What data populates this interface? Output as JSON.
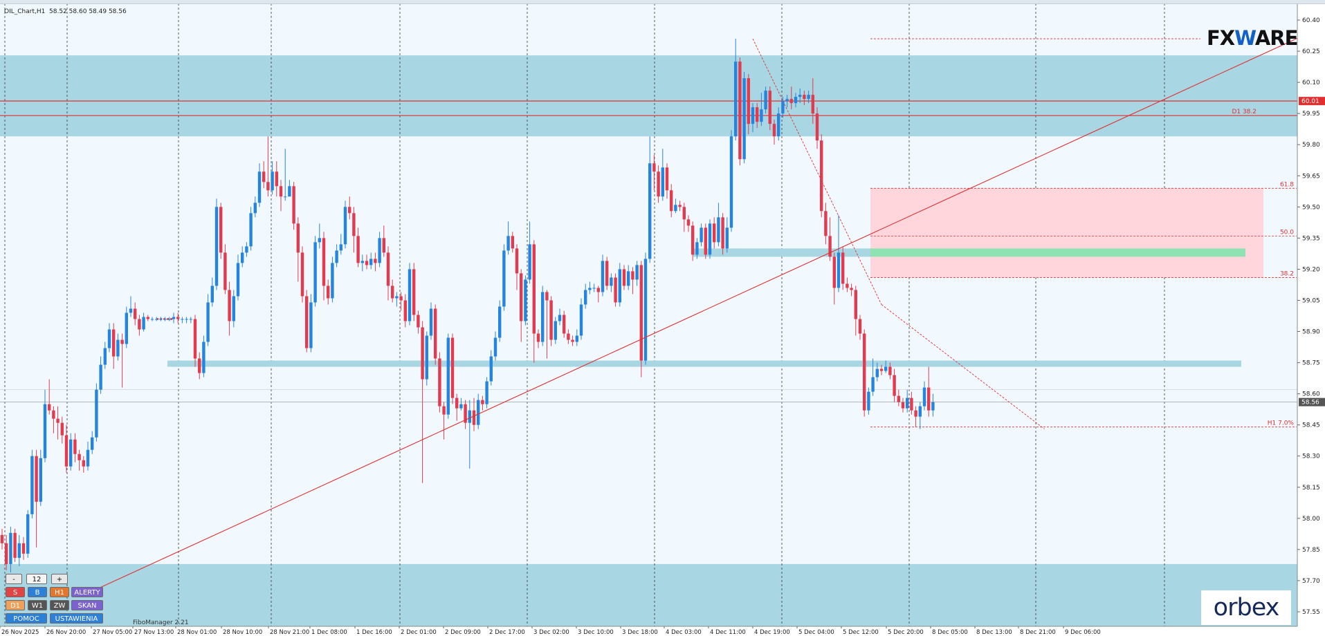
{
  "header": {
    "title": "OIL_Chart,H1  58.52 58.60 58.49 58.56"
  },
  "indicator_label": "FiboManager 2.21",
  "logo": {
    "left": "FX",
    "mid": "W",
    "right": "ARE"
  },
  "logo_bottom": "orbex",
  "panel": {
    "minus": "-",
    "value": "12",
    "plus": "+",
    "s": "S",
    "b": "B",
    "h1": "H1",
    "alerty": "ALERTY",
    "d1": "D1",
    "w1": "W1",
    "zw": "ZW",
    "skan": "SKAN",
    "pomoc": "POMOC",
    "ustawienia": "USTAWIENIA"
  },
  "chart_data": {
    "type": "candlestick",
    "title": "OIL_Chart,H1",
    "last_ohlc": {
      "open": 58.52,
      "high": 58.6,
      "low": 58.49,
      "close": 58.56
    },
    "ylim": [
      57.48,
      60.48
    ],
    "y_ticks": [
      "60.40",
      "60.25",
      "60.10",
      "59.95",
      "59.80",
      "59.65",
      "59.50",
      "59.35",
      "59.20",
      "59.05",
      "58.90",
      "58.75",
      "58.60",
      "58.45",
      "58.30",
      "58.15",
      "58.00",
      "57.85",
      "57.70",
      "57.55"
    ],
    "x_ticks": [
      "26 Nov 2025",
      "26 Nov 20:00",
      "27 Nov 05:00",
      "27 Nov 13:00",
      "28 Nov 01:00",
      "28 Nov 10:00",
      "28 Nov 21:00",
      "1 Dec 08:00",
      "1 Dec 16:00",
      "2 Dec 01:00",
      "2 Dec 09:00",
      "2 Dec 17:00",
      "3 Dec 02:00",
      "3 Dec 10:00",
      "3 Dec 18:00",
      "4 Dec 03:00",
      "4 Dec 11:00",
      "4 Dec 19:00",
      "5 Dec 04:00",
      "5 Dec 12:00",
      "5 Dec 20:00",
      "8 Dec 05:00",
      "8 Dec 13:00",
      "8 Dec 21:00",
      "9 Dec 06:00"
    ],
    "price_tags": [
      {
        "value": 60.01,
        "label": "60.01",
        "color": "#e03030"
      },
      {
        "value": 58.56,
        "label": "58.56",
        "color": "#555555"
      }
    ],
    "zones": [
      {
        "from": 59.84,
        "to": 60.23,
        "color": "#a9d6e3"
      },
      {
        "from": 57.48,
        "to": 57.78,
        "color": "#a9d6e3"
      }
    ],
    "bands": [
      {
        "x0": 242,
        "x1": 1794,
        "from": 58.73,
        "to": 58.76,
        "color": "#a9d6e3"
      },
      {
        "x0": 1002,
        "x1": 1258,
        "from": 59.26,
        "to": 59.3,
        "color": "#a9d6e3"
      },
      {
        "x0": 1258,
        "x1": 1800,
        "from": 59.26,
        "to": 59.3,
        "color": "#8fe3b3"
      }
    ],
    "fib_box": {
      "from": 59.16,
      "to": 59.59,
      "color": "#ffd6dc"
    },
    "horizontal_lines": [
      {
        "value": 60.01,
        "color": "#e03030"
      },
      {
        "value": 59.94,
        "color": "#e03030",
        "label": "D1 38.2"
      }
    ],
    "fib_levels": [
      {
        "value": 59.59,
        "label": "61.8"
      },
      {
        "value": 59.36,
        "label": "50.0"
      },
      {
        "value": 59.16,
        "label": "38.2"
      },
      {
        "value": 58.44,
        "label": "H1 7.0%"
      }
    ],
    "trendline": {
      "from": {
        "index": 0,
        "value": 57.45
      },
      "to": {
        "index": 250,
        "value": 59.82
      }
    },
    "candles": [
      [
        57.92,
        57.88,
        57.95,
        57.85
      ],
      [
        57.88,
        57.78,
        57.92,
        57.75
      ],
      [
        57.78,
        57.93,
        57.96,
        57.74
      ],
      [
        57.93,
        57.81,
        57.95,
        57.79
      ],
      [
        57.81,
        57.88,
        57.92,
        57.77
      ],
      [
        57.88,
        57.83,
        57.91,
        57.8
      ],
      [
        57.83,
        58.02,
        58.04,
        57.81
      ],
      [
        58.02,
        58.3,
        58.33,
        58.0
      ],
      [
        58.3,
        58.08,
        58.33,
        57.86
      ],
      [
        58.08,
        58.29,
        58.33,
        58.06
      ],
      [
        58.29,
        58.55,
        58.62,
        58.27
      ],
      [
        58.55,
        58.52,
        58.67,
        58.5
      ],
      [
        58.52,
        58.48,
        58.54,
        58.41
      ],
      [
        58.48,
        58.46,
        58.54,
        58.38
      ],
      [
        58.46,
        58.4,
        58.49,
        58.36
      ],
      [
        58.4,
        58.25,
        58.45,
        58.22
      ],
      [
        58.25,
        58.38,
        58.41,
        58.23
      ],
      [
        58.38,
        58.31,
        58.41,
        58.27
      ],
      [
        58.31,
        58.28,
        58.33,
        58.23
      ],
      [
        58.28,
        58.25,
        58.3,
        58.22
      ],
      [
        58.25,
        58.33,
        58.37,
        58.23
      ],
      [
        58.33,
        58.39,
        58.42,
        58.31
      ],
      [
        58.39,
        58.62,
        58.65,
        58.37
      ],
      [
        58.62,
        58.74,
        58.78,
        58.6
      ],
      [
        58.74,
        58.82,
        58.85,
        58.72
      ],
      [
        58.82,
        58.91,
        58.94,
        58.8
      ],
      [
        58.91,
        58.78,
        58.94,
        58.72
      ],
      [
        58.78,
        58.86,
        58.89,
        58.76
      ],
      [
        58.86,
        58.84,
        58.89,
        58.63
      ],
      [
        58.84,
        58.99,
        59.02,
        58.82
      ],
      [
        58.99,
        59.01,
        59.07,
        58.97
      ],
      [
        59.01,
        58.96,
        59.04,
        58.93
      ],
      [
        58.96,
        58.91,
        58.98,
        58.88
      ],
      [
        58.91,
        58.97,
        58.99,
        58.9
      ],
      [
        58.97,
        58.96,
        58.98,
        58.95
      ],
      [
        58.96,
        58.96,
        58.97,
        58.95
      ],
      [
        58.96,
        58.96,
        58.97,
        58.95
      ],
      [
        58.96,
        58.96,
        58.97,
        58.95
      ],
      [
        58.96,
        58.96,
        58.97,
        58.95
      ],
      [
        58.96,
        58.96,
        58.97,
        58.95
      ],
      [
        58.96,
        58.97,
        58.99,
        58.94
      ],
      [
        58.97,
        58.96,
        58.99,
        58.94
      ],
      [
        58.96,
        58.96,
        58.97,
        58.94
      ],
      [
        58.96,
        58.96,
        58.97,
        58.94
      ],
      [
        58.96,
        58.96,
        58.97,
        58.94
      ],
      [
        58.96,
        58.77,
        58.98,
        58.73
      ],
      [
        58.77,
        58.7,
        58.8,
        58.67
      ],
      [
        58.7,
        58.85,
        58.88,
        58.68
      ],
      [
        58.85,
        59.04,
        59.08,
        58.83
      ],
      [
        59.04,
        59.12,
        59.16,
        59.02
      ],
      [
        59.12,
        59.5,
        59.54,
        59.1
      ],
      [
        59.5,
        59.28,
        59.52,
        59.25
      ],
      [
        59.28,
        59.1,
        59.32,
        59.08
      ],
      [
        59.1,
        58.95,
        59.14,
        58.88
      ],
      [
        58.95,
        59.07,
        59.1,
        58.92
      ],
      [
        59.07,
        59.23,
        59.27,
        59.05
      ],
      [
        59.23,
        59.28,
        59.31,
        59.21
      ],
      [
        59.28,
        59.31,
        59.33,
        59.26
      ],
      [
        59.31,
        59.47,
        59.5,
        59.29
      ],
      [
        59.47,
        59.52,
        59.55,
        59.45
      ],
      [
        59.52,
        59.67,
        59.71,
        59.5
      ],
      [
        59.67,
        59.62,
        59.72,
        59.59
      ],
      [
        59.62,
        59.58,
        59.84,
        59.55
      ],
      [
        59.58,
        59.67,
        59.72,
        59.56
      ],
      [
        59.67,
        59.6,
        59.72,
        59.55
      ],
      [
        59.6,
        59.55,
        59.63,
        59.48
      ],
      [
        59.55,
        59.55,
        59.78,
        59.53
      ],
      [
        59.55,
        59.6,
        59.63,
        59.57
      ],
      [
        59.6,
        59.42,
        59.62,
        59.39
      ],
      [
        59.42,
        59.28,
        59.45,
        59.14
      ],
      [
        59.28,
        59.07,
        59.31,
        59.04
      ],
      [
        59.07,
        58.82,
        59.1,
        58.8
      ],
      [
        58.82,
        59.04,
        59.08,
        58.8
      ],
      [
        59.04,
        59.33,
        59.36,
        59.02
      ],
      [
        59.33,
        59.35,
        59.42,
        59.3
      ],
      [
        59.35,
        59.12,
        59.38,
        59.05
      ],
      [
        59.12,
        59.06,
        59.15,
        59.03
      ],
      [
        59.06,
        59.23,
        59.26,
        59.04
      ],
      [
        59.23,
        59.29,
        59.32,
        59.21
      ],
      [
        59.29,
        59.32,
        59.37,
        59.27
      ],
      [
        59.32,
        59.5,
        59.53,
        59.3
      ],
      [
        59.5,
        59.47,
        59.55,
        59.44
      ],
      [
        59.47,
        59.36,
        59.5,
        59.28
      ],
      [
        59.36,
        59.23,
        59.4,
        59.21
      ],
      [
        59.23,
        59.24,
        59.27,
        59.19
      ],
      [
        59.24,
        59.22,
        59.27,
        59.2
      ],
      [
        59.22,
        59.25,
        59.28,
        59.2
      ],
      [
        59.25,
        59.23,
        59.28,
        59.19
      ],
      [
        59.23,
        59.35,
        59.38,
        59.21
      ],
      [
        59.35,
        59.28,
        59.41,
        59.26
      ],
      [
        59.28,
        59.12,
        59.31,
        59.05
      ],
      [
        59.12,
        59.06,
        59.15,
        59.04
      ],
      [
        59.06,
        59.07,
        59.09,
        59.02
      ],
      [
        59.07,
        59.05,
        59.09,
        59.0
      ],
      [
        59.05,
        58.95,
        59.08,
        58.92
      ],
      [
        58.95,
        59.2,
        59.23,
        58.93
      ],
      [
        59.2,
        58.98,
        59.23,
        58.95
      ],
      [
        58.98,
        58.92,
        59.0,
        58.89
      ],
      [
        58.92,
        58.67,
        58.95,
        58.17
      ],
      [
        58.67,
        58.88,
        58.9,
        58.64
      ],
      [
        58.88,
        59.01,
        59.04,
        58.86
      ],
      [
        59.01,
        58.77,
        59.03,
        58.74
      ],
      [
        58.77,
        58.54,
        58.8,
        58.51
      ],
      [
        58.54,
        58.5,
        58.56,
        58.38
      ],
      [
        58.5,
        58.87,
        58.89,
        58.48
      ],
      [
        58.87,
        58.58,
        58.89,
        58.55
      ],
      [
        58.58,
        58.53,
        58.6,
        58.47
      ],
      [
        58.53,
        58.55,
        58.58,
        58.52
      ],
      [
        58.55,
        58.46,
        58.57,
        58.43
      ],
      [
        58.46,
        58.52,
        58.57,
        58.24
      ],
      [
        58.52,
        58.45,
        58.58,
        58.42
      ],
      [
        58.45,
        58.57,
        58.6,
        58.43
      ],
      [
        58.57,
        58.55,
        58.59,
        58.52
      ],
      [
        58.55,
        58.66,
        58.68,
        58.53
      ],
      [
        58.66,
        58.78,
        58.81,
        58.64
      ],
      [
        58.78,
        58.87,
        58.9,
        58.76
      ],
      [
        58.87,
        59.02,
        59.05,
        58.85
      ],
      [
        59.02,
        59.29,
        59.32,
        59.0
      ],
      [
        59.29,
        59.36,
        59.43,
        59.27
      ],
      [
        59.36,
        59.3,
        59.38,
        59.28
      ],
      [
        59.3,
        59.18,
        59.32,
        59.1
      ],
      [
        59.18,
        58.95,
        59.2,
        58.85
      ],
      [
        58.95,
        59.15,
        59.17,
        58.93
      ],
      [
        59.15,
        59.32,
        59.43,
        59.13
      ],
      [
        59.32,
        58.89,
        59.34,
        58.75
      ],
      [
        58.89,
        58.85,
        58.91,
        58.82
      ],
      [
        58.85,
        59.09,
        59.12,
        58.83
      ],
      [
        59.09,
        59.05,
        59.1,
        58.77
      ],
      [
        59.05,
        58.86,
        59.07,
        58.83
      ],
      [
        58.86,
        58.95,
        58.97,
        58.84
      ],
      [
        58.95,
        58.98,
        59.01,
        58.93
      ],
      [
        58.98,
        58.89,
        59.0,
        58.87
      ],
      [
        58.89,
        58.86,
        58.91,
        58.84
      ],
      [
        58.86,
        58.85,
        58.88,
        58.83
      ],
      [
        58.85,
        58.88,
        58.91,
        58.83
      ],
      [
        58.88,
        59.03,
        59.06,
        58.86
      ],
      [
        59.03,
        59.1,
        59.13,
        59.01
      ],
      [
        59.1,
        59.11,
        59.14,
        59.08
      ],
      [
        59.11,
        59.11,
        59.13,
        59.09
      ],
      [
        59.11,
        59.09,
        59.12,
        59.04
      ],
      [
        59.09,
        59.24,
        59.27,
        59.07
      ],
      [
        59.24,
        59.12,
        59.26,
        59.1
      ],
      [
        59.12,
        59.16,
        59.18,
        59.09
      ],
      [
        59.16,
        59.04,
        59.18,
        59.02
      ],
      [
        59.04,
        59.2,
        59.23,
        59.02
      ],
      [
        59.2,
        59.12,
        59.22,
        59.1
      ],
      [
        59.12,
        59.19,
        59.22,
        59.1
      ],
      [
        59.19,
        59.15,
        59.21,
        59.08
      ],
      [
        59.15,
        59.22,
        59.24,
        59.12
      ],
      [
        59.22,
        58.76,
        59.24,
        58.68
      ],
      [
        58.76,
        59.25,
        59.28,
        58.74
      ],
      [
        59.25,
        59.71,
        59.84,
        59.23
      ],
      [
        59.71,
        59.67,
        59.75,
        59.58
      ],
      [
        59.67,
        59.55,
        59.7,
        59.52
      ],
      [
        59.55,
        59.69,
        59.78,
        59.53
      ],
      [
        59.69,
        59.58,
        59.71,
        59.54
      ],
      [
        59.58,
        59.48,
        59.61,
        59.45
      ],
      [
        59.48,
        59.51,
        59.54,
        59.47
      ],
      [
        59.51,
        59.5,
        59.53,
        59.48
      ],
      [
        59.5,
        59.44,
        59.52,
        59.38
      ],
      [
        59.44,
        59.41,
        59.46,
        59.38
      ],
      [
        59.41,
        59.27,
        59.43,
        59.24
      ],
      [
        59.27,
        59.33,
        59.35,
        59.25
      ],
      [
        59.33,
        59.4,
        59.42,
        59.31
      ],
      [
        59.4,
        59.27,
        59.42,
        59.25
      ],
      [
        59.27,
        59.42,
        59.44,
        59.25
      ],
      [
        59.42,
        59.33,
        59.45,
        59.3
      ],
      [
        59.33,
        59.45,
        59.52,
        59.31
      ],
      [
        59.45,
        59.3,
        59.47,
        59.27
      ],
      [
        59.3,
        59.4,
        59.45,
        59.28
      ],
      [
        59.4,
        59.84,
        59.87,
        59.38
      ],
      [
        59.84,
        60.2,
        60.31,
        59.82
      ],
      [
        60.2,
        59.73,
        60.22,
        59.7
      ],
      [
        59.73,
        60.12,
        60.15,
        59.71
      ],
      [
        60.12,
        59.9,
        60.14,
        59.85
      ],
      [
        59.9,
        59.98,
        60.0,
        59.86
      ],
      [
        59.98,
        59.91,
        60.0,
        59.88
      ],
      [
        59.91,
        59.97,
        60.05,
        59.89
      ],
      [
        59.97,
        60.06,
        60.08,
        59.95
      ],
      [
        60.06,
        59.9,
        60.08,
        59.87
      ],
      [
        59.9,
        59.84,
        59.92,
        59.8
      ],
      [
        59.84,
        59.95,
        59.98,
        59.82
      ],
      [
        59.95,
        60.01,
        60.03,
        59.93
      ],
      [
        60.01,
        60.02,
        60.04,
        59.98
      ],
      [
        60.02,
        60.0,
        60.08,
        59.97
      ],
      [
        60.0,
        60.03,
        60.05,
        59.98
      ],
      [
        60.03,
        60.04,
        60.07,
        60.0
      ],
      [
        60.04,
        60.02,
        60.06,
        59.99
      ],
      [
        60.02,
        60.04,
        60.06,
        60.0
      ],
      [
        60.04,
        59.95,
        60.12,
        59.9
      ],
      [
        59.95,
        59.82,
        59.98,
        59.78
      ],
      [
        59.82,
        59.48,
        59.85,
        59.45
      ],
      [
        59.48,
        59.36,
        59.52,
        59.32
      ],
      [
        59.36,
        59.26,
        59.45,
        59.24
      ],
      [
        59.26,
        59.11,
        59.28,
        59.03
      ],
      [
        59.11,
        59.28,
        59.46,
        59.09
      ],
      [
        59.28,
        59.13,
        59.31,
        59.1
      ],
      [
        59.13,
        59.11,
        59.16,
        59.09
      ],
      [
        59.11,
        59.1,
        59.13,
        59.07
      ],
      [
        59.1,
        58.96,
        59.12,
        58.88
      ],
      [
        58.96,
        58.89,
        58.98,
        58.86
      ],
      [
        58.89,
        58.52,
        58.91,
        58.49
      ],
      [
        58.52,
        58.61,
        58.63,
        58.5
      ],
      [
        58.61,
        58.68,
        58.77,
        58.59
      ],
      [
        58.68,
        58.72,
        58.75,
        58.66
      ],
      [
        58.72,
        58.71,
        58.74,
        58.69
      ],
      [
        58.71,
        58.73,
        58.76,
        58.7
      ],
      [
        58.73,
        58.69,
        58.75,
        58.67
      ],
      [
        58.69,
        58.59,
        58.72,
        58.56
      ],
      [
        58.59,
        58.56,
        58.62,
        58.54
      ],
      [
        58.56,
        58.53,
        58.58,
        58.51
      ],
      [
        58.53,
        58.58,
        58.62,
        58.51
      ],
      [
        58.58,
        58.52,
        58.61,
        58.5
      ],
      [
        58.52,
        58.49,
        58.54,
        58.44
      ],
      [
        58.49,
        58.54,
        58.56,
        58.43
      ],
      [
        58.54,
        58.63,
        58.66,
        58.52
      ],
      [
        58.63,
        58.52,
        58.73,
        58.49
      ],
      [
        58.52,
        58.56,
        58.6,
        58.49
      ]
    ]
  }
}
